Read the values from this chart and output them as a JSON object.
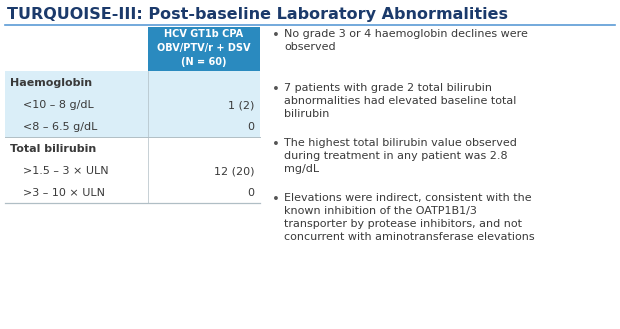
{
  "title": "TURQUOISE-III: Post-baseline Laboratory Abnormalities",
  "title_color": "#1b3a6b",
  "title_fontsize": 11.5,
  "header_bg": "#2a8abf",
  "header_text_color": "#ffffff",
  "header_line1": "HCV GT1b CPA",
  "header_line2": "OBV/PTV/r + DSV",
  "header_line3": "(N = 60)",
  "row_bg_light": "#daeef8",
  "row_bg_white": "#ffffff",
  "table_rows": [
    {
      "label": "Haemoglobin",
      "value": "",
      "bold": true,
      "indent": false,
      "bg": "#daeef8"
    },
    {
      "label": "<10 – 8 g/dL",
      "value": "1 (2)",
      "bold": false,
      "indent": true,
      "bg": "#daeef8"
    },
    {
      "label": "<8 – 6.5 g/dL",
      "value": "0",
      "bold": false,
      "indent": true,
      "bg": "#daeef8"
    },
    {
      "label": "Total bilirubin",
      "value": "",
      "bold": true,
      "indent": false,
      "bg": "#ffffff"
    },
    {
      "label": ">1.5 – 3 × ULN",
      "value": "12 (20)",
      "bold": false,
      "indent": true,
      "bg": "#ffffff"
    },
    {
      "label": ">3 – 10 × ULN",
      "value": "0",
      "bold": false,
      "indent": true,
      "bg": "#ffffff"
    }
  ],
  "bullet_points": [
    "No grade 3 or 4 haemoglobin declines were\nobserved",
    "7 patients with grade 2 total bilirubin\nabnormalities had elevated baseline total\nbilirubin",
    "The highest total bilirubin value observed\nduring treatment in any patient was 2.8\nmg/dL",
    "Elevations were indirect, consistent with the\nknown inhibition of the OATP1B1/3\ntransporter by protease inhibitors, and not\nconcurrent with aminotransferase elevations"
  ],
  "bullet_color": "#555555",
  "text_color": "#3a3a3a",
  "separator_color": "#b0bec5",
  "title_line_color": "#5b9bd5",
  "background_color": "#ffffff",
  "fig_width": 6.2,
  "fig_height": 3.29,
  "dpi": 100
}
